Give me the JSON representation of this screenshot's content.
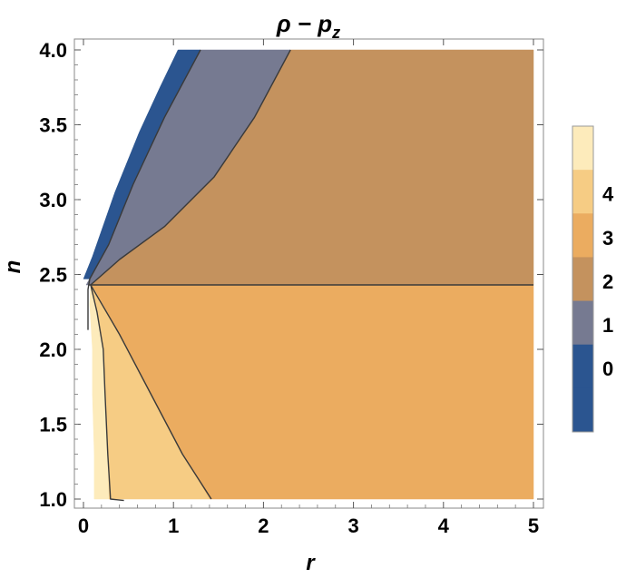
{
  "chart_data": {
    "type": "contour",
    "title": "ρ − pz",
    "title_main": "ρ − p",
    "title_sub": "z",
    "xlabel": "r",
    "ylabel": "n",
    "xlim": [
      0,
      5
    ],
    "ylim": [
      1.0,
      4.0
    ],
    "x_ticks": [
      0,
      1,
      2,
      3,
      4,
      5
    ],
    "y_ticks": [
      1.0,
      1.5,
      2.0,
      2.5,
      3.0,
      3.5,
      4.0
    ],
    "x_tick_labels": [
      "0",
      "1",
      "2",
      "3",
      "4",
      "5"
    ],
    "y_tick_labels": [
      "1.0",
      "1.5",
      "2.0",
      "2.5",
      "3.0",
      "3.5",
      "4.0"
    ],
    "legend": {
      "placement": "right",
      "levels": [
        {
          "value": 0,
          "label": "0",
          "color": "#2b5590"
        },
        {
          "value": 1,
          "label": "1",
          "color": "#767a91"
        },
        {
          "value": 2,
          "label": "2",
          "color": "#c4925e"
        },
        {
          "value": 3,
          "label": "3",
          "color": "#ebac60"
        },
        {
          "value": 4,
          "label": "4",
          "color": "#f6cc84"
        },
        {
          "value": 5,
          "label": "",
          "color": "#fdebbb"
        }
      ],
      "bottom_color": "#2b5590"
    },
    "boundary_level_n": 2.43,
    "regions": [
      {
        "name": "region-level-0",
        "level": 0,
        "color": "#2b5590",
        "points": [
          [
            0.0,
            2.47
          ],
          [
            0.1,
            2.62
          ],
          [
            0.35,
            3.05
          ],
          [
            0.62,
            3.45
          ],
          [
            0.85,
            3.75
          ],
          [
            1.05,
            4.0
          ],
          [
            1.3,
            4.0
          ],
          [
            0.9,
            3.55
          ],
          [
            0.55,
            3.1
          ],
          [
            0.28,
            2.7
          ],
          [
            0.07,
            2.47
          ]
        ]
      },
      {
        "name": "region-level-1",
        "level": 1,
        "color": "#767a91",
        "points": [
          [
            0.03,
            2.43
          ],
          [
            0.28,
            2.7
          ],
          [
            0.55,
            3.1
          ],
          [
            0.9,
            3.55
          ],
          [
            1.3,
            4.0
          ],
          [
            2.3,
            4.0
          ],
          [
            1.9,
            3.55
          ],
          [
            1.45,
            3.15
          ],
          [
            0.9,
            2.82
          ],
          [
            0.4,
            2.6
          ],
          [
            0.08,
            2.43
          ]
        ]
      },
      {
        "name": "region-level-2",
        "level": 2,
        "color": "#c4925e",
        "points": [
          [
            0.08,
            2.43
          ],
          [
            0.4,
            2.6
          ],
          [
            0.9,
            2.82
          ],
          [
            1.45,
            3.15
          ],
          [
            1.9,
            3.55
          ],
          [
            2.3,
            4.0
          ],
          [
            5.0,
            4.0
          ],
          [
            5.0,
            2.43
          ]
        ]
      },
      {
        "name": "region-level-3",
        "level": 3,
        "color": "#ebac60",
        "points": [
          [
            0.08,
            2.43
          ],
          [
            5.0,
            2.43
          ],
          [
            5.0,
            1.0
          ],
          [
            1.4,
            1.0
          ],
          [
            1.1,
            1.3
          ],
          [
            0.75,
            1.7
          ],
          [
            0.4,
            2.1
          ],
          [
            0.12,
            2.4
          ]
        ]
      },
      {
        "name": "region-level-4",
        "level": 4,
        "color": "#f6cc84",
        "points": [
          [
            0.08,
            2.43
          ],
          [
            0.12,
            2.4
          ],
          [
            0.4,
            2.1
          ],
          [
            0.75,
            1.7
          ],
          [
            1.1,
            1.3
          ],
          [
            1.4,
            1.0
          ],
          [
            0.28,
            1.0
          ],
          [
            0.27,
            1.3
          ],
          [
            0.24,
            1.7
          ],
          [
            0.22,
            2.0
          ],
          [
            0.15,
            2.25
          ]
        ]
      },
      {
        "name": "region-level-5",
        "level": 5,
        "color": "#fdebbb",
        "points": [
          [
            0.08,
            2.43
          ],
          [
            0.15,
            2.25
          ],
          [
            0.22,
            2.0
          ],
          [
            0.24,
            1.7
          ],
          [
            0.27,
            1.3
          ],
          [
            0.28,
            1.0
          ],
          [
            0.12,
            1.0
          ],
          [
            0.12,
            1.3
          ],
          [
            0.1,
            1.7
          ],
          [
            0.1,
            2.0
          ],
          [
            0.07,
            2.3
          ]
        ]
      }
    ],
    "contour_lines": [
      {
        "name": "contour-line-0",
        "points": [
          [
            0.07,
            2.47
          ],
          [
            0.28,
            2.7
          ],
          [
            0.55,
            3.1
          ],
          [
            0.9,
            3.55
          ],
          [
            1.3,
            4.0
          ]
        ]
      },
      {
        "name": "contour-line-1",
        "points": [
          [
            0.08,
            2.43
          ],
          [
            0.4,
            2.6
          ],
          [
            0.9,
            2.82
          ],
          [
            1.45,
            3.15
          ],
          [
            1.9,
            3.55
          ],
          [
            2.3,
            4.0
          ]
        ]
      },
      {
        "name": "contour-line-2",
        "points": [
          [
            0.06,
            2.43
          ],
          [
            5.0,
            2.43
          ]
        ]
      },
      {
        "name": "contour-line-3",
        "points": [
          [
            0.08,
            2.43
          ],
          [
            0.4,
            2.1
          ],
          [
            0.75,
            1.7
          ],
          [
            1.1,
            1.3
          ],
          [
            1.42,
            1.0
          ]
        ]
      },
      {
        "name": "contour-line-4",
        "points": [
          [
            0.08,
            2.43
          ],
          [
            0.15,
            2.25
          ],
          [
            0.22,
            2.0
          ],
          [
            0.24,
            1.7
          ],
          [
            0.27,
            1.3
          ],
          [
            0.3,
            1.0
          ],
          [
            0.45,
            0.99
          ]
        ]
      },
      {
        "name": "contour-line-5",
        "points": [
          [
            0.05,
            2.13
          ],
          [
            0.05,
            2.4
          ],
          [
            0.07,
            2.47
          ]
        ]
      }
    ]
  }
}
